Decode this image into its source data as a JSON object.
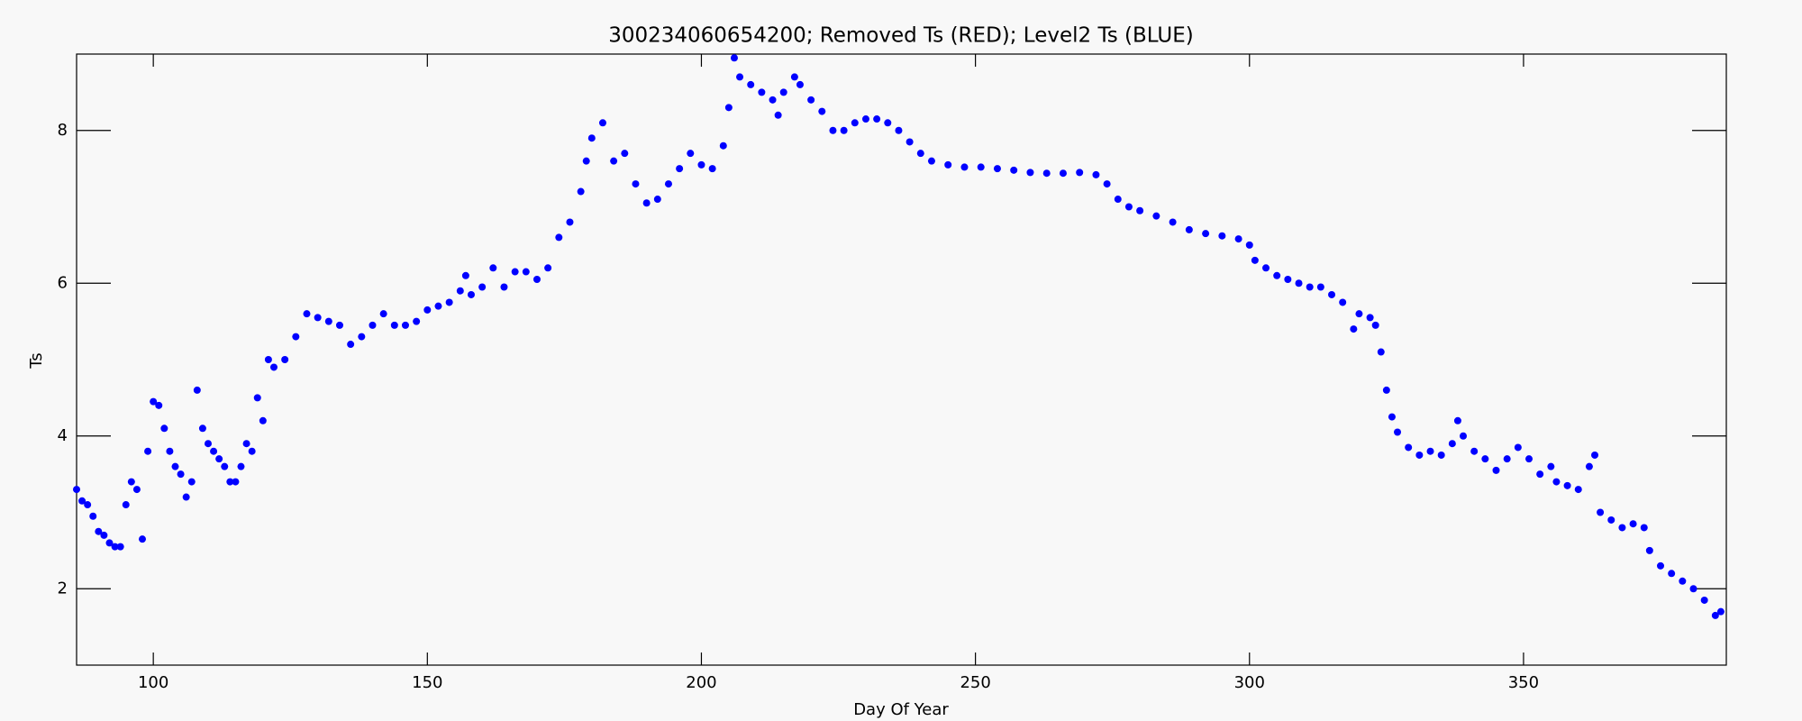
{
  "chart_data": {
    "type": "scatter",
    "title": "300234060654200; Removed Ts (RED); Level2 Ts (BLUE)",
    "xlabel": "Day Of Year",
    "ylabel": "Ts",
    "color": "#0000ff",
    "xlim": [
      86,
      387
    ],
    "xticks": [
      100,
      150,
      200,
      250,
      300,
      350
    ],
    "ylim": [
      1,
      9
    ],
    "yticks": [
      2,
      4,
      6,
      8
    ],
    "x": [
      86,
      87,
      88,
      89,
      90,
      91,
      92,
      93,
      94,
      95,
      96,
      97,
      98,
      99,
      100,
      101,
      102,
      103,
      104,
      105,
      106,
      107,
      108,
      109,
      110,
      111,
      112,
      113,
      114,
      115,
      116,
      117,
      118,
      119,
      120,
      121,
      122,
      124,
      126,
      128,
      130,
      132,
      134,
      136,
      138,
      140,
      142,
      144,
      146,
      148,
      150,
      152,
      154,
      156,
      157,
      158,
      160,
      162,
      164,
      166,
      168,
      170,
      172,
      174,
      176,
      178,
      179,
      180,
      182,
      184,
      186,
      188,
      190,
      192,
      194,
      196,
      198,
      200,
      202,
      204,
      205,
      206,
      207,
      209,
      211,
      213,
      214,
      215,
      217,
      218,
      220,
      222,
      224,
      226,
      228,
      230,
      232,
      234,
      236,
      238,
      240,
      242,
      245,
      248,
      251,
      254,
      257,
      260,
      263,
      266,
      269,
      272,
      274,
      276,
      278,
      280,
      283,
      286,
      289,
      292,
      295,
      298,
      300,
      301,
      303,
      305,
      307,
      309,
      311,
      313,
      315,
      317,
      319,
      320,
      322,
      323,
      324,
      325,
      326,
      327,
      329,
      331,
      333,
      335,
      337,
      338,
      339,
      341,
      343,
      345,
      347,
      349,
      351,
      353,
      355,
      356,
      358,
      360,
      362,
      363,
      364,
      366,
      368,
      370,
      372,
      373,
      375,
      377,
      379,
      381,
      383,
      385,
      386
    ],
    "values": [
      3.3,
      3.15,
      3.1,
      2.95,
      2.75,
      2.7,
      2.6,
      2.55,
      2.55,
      3.1,
      3.4,
      3.3,
      2.65,
      3.8,
      4.45,
      4.4,
      4.1,
      3.8,
      3.6,
      3.5,
      3.2,
      3.4,
      4.6,
      4.1,
      3.9,
      3.8,
      3.7,
      3.6,
      3.4,
      3.4,
      3.6,
      3.9,
      3.8,
      4.5,
      4.2,
      5.0,
      4.9,
      5.0,
      5.3,
      5.6,
      5.55,
      5.5,
      5.45,
      5.2,
      5.3,
      5.45,
      5.6,
      5.45,
      5.45,
      5.5,
      5.65,
      5.7,
      5.75,
      5.9,
      6.1,
      5.85,
      5.95,
      6.2,
      5.95,
      6.15,
      6.15,
      6.05,
      6.2,
      6.6,
      6.8,
      7.2,
      7.6,
      7.9,
      8.1,
      7.6,
      7.7,
      7.3,
      7.05,
      7.1,
      7.3,
      7.5,
      7.7,
      7.55,
      7.5,
      7.8,
      8.3,
      8.95,
      8.7,
      8.6,
      8.5,
      8.4,
      8.2,
      8.5,
      8.7,
      8.6,
      8.4,
      8.25,
      8.0,
      8.0,
      8.1,
      8.15,
      8.15,
      8.1,
      8.0,
      7.85,
      7.7,
      7.6,
      7.55,
      7.52,
      7.52,
      7.5,
      7.48,
      7.45,
      7.44,
      7.44,
      7.45,
      7.42,
      7.3,
      7.1,
      7.0,
      6.95,
      6.88,
      6.8,
      6.7,
      6.65,
      6.62,
      6.58,
      6.5,
      6.3,
      6.2,
      6.1,
      6.05,
      6.0,
      5.95,
      5.95,
      5.85,
      5.75,
      5.4,
      5.6,
      5.55,
      5.45,
      5.1,
      4.6,
      4.25,
      4.05,
      3.85,
      3.75,
      3.8,
      3.75,
      3.9,
      4.2,
      4.0,
      3.8,
      3.7,
      3.55,
      3.7,
      3.85,
      3.7,
      3.5,
      3.6,
      3.4,
      3.35,
      3.3,
      3.6,
      3.75,
      3.0,
      2.9,
      2.8,
      2.85,
      2.8,
      2.5,
      2.3,
      2.2,
      2.1,
      2.0,
      1.85,
      1.65,
      1.7
    ]
  }
}
